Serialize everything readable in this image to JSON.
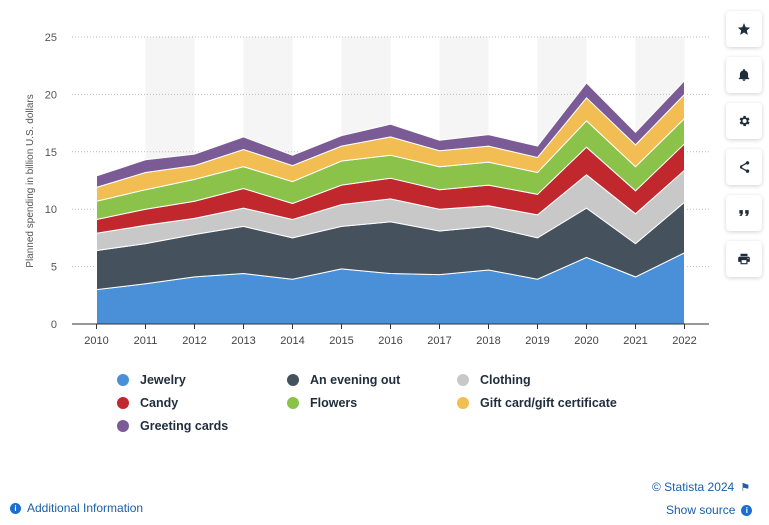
{
  "chart_data": {
    "type": "area",
    "stacked": true,
    "ylabel": "Planned spending in billion U.S. dollars",
    "xlabel": "",
    "ylim": [
      0,
      25
    ],
    "yticks": [
      0,
      5,
      10,
      15,
      20,
      25
    ],
    "grid": true,
    "legend_position": "bottom",
    "x": [
      "2010",
      "2011",
      "2012",
      "2013",
      "2014",
      "2015",
      "2016",
      "2017",
      "2018",
      "2019",
      "2020",
      "2021",
      "2022"
    ],
    "series": [
      {
        "name": "Jewelry",
        "color": "#4a90d9",
        "values": [
          3.0,
          3.5,
          4.1,
          4.4,
          3.9,
          4.8,
          4.4,
          4.3,
          4.7,
          3.9,
          5.8,
          4.1,
          6.2
        ]
      },
      {
        "name": "An evening out",
        "color": "#46515e",
        "values": [
          3.4,
          3.5,
          3.7,
          4.1,
          3.6,
          3.7,
          4.5,
          3.8,
          3.8,
          3.6,
          4.3,
          2.9,
          4.4
        ]
      },
      {
        "name": "Clothing",
        "color": "#c8c8c8",
        "values": [
          1.5,
          1.6,
          1.4,
          1.6,
          1.6,
          1.9,
          2.0,
          1.9,
          1.8,
          2.0,
          2.9,
          2.6,
          2.8
        ]
      },
      {
        "name": "Candy",
        "color": "#c0282d",
        "values": [
          1.2,
          1.4,
          1.5,
          1.7,
          1.4,
          1.7,
          1.8,
          1.7,
          1.8,
          1.8,
          2.4,
          2.0,
          2.3
        ]
      },
      {
        "name": "Flowers",
        "color": "#8bc34a",
        "values": [
          1.6,
          1.7,
          1.9,
          1.9,
          1.9,
          2.1,
          2.0,
          2.0,
          2.0,
          1.9,
          2.3,
          2.1,
          2.2
        ]
      },
      {
        "name": "Gift card/gift certificate",
        "color": "#f2bd52",
        "values": [
          1.2,
          1.5,
          1.2,
          1.5,
          1.4,
          1.3,
          1.6,
          1.4,
          1.4,
          1.3,
          2.0,
          1.9,
          2.1
        ]
      },
      {
        "name": "Greeting cards",
        "color": "#7b5b96",
        "values": [
          1.0,
          1.1,
          1.0,
          1.1,
          0.9,
          0.9,
          1.1,
          0.9,
          1.0,
          1.0,
          1.3,
          1.1,
          1.2
        ]
      }
    ]
  },
  "footer": {
    "copyright": "© Statista 2024",
    "additional_info": "Additional Information",
    "show_source": "Show source",
    "info_glyph": "i",
    "flag_glyph": "⚑"
  },
  "sidebar": {
    "buttons": [
      "star-icon",
      "bell-icon",
      "gear-icon",
      "share-icon",
      "quote-icon",
      "print-icon"
    ]
  }
}
